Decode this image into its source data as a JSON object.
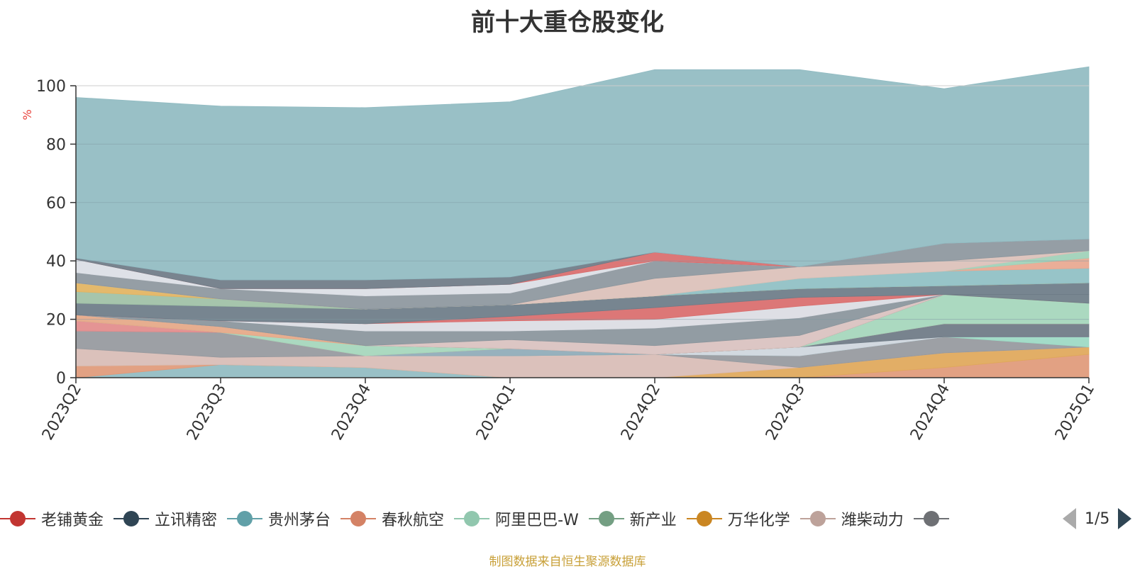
{
  "chart_data": {
    "type": "area",
    "title": "前十大重仓股变化",
    "ylabel": "%",
    "ylim": [
      0,
      100
    ],
    "yticks": [
      0,
      20,
      40,
      60,
      80,
      100
    ],
    "categories": [
      "2023Q2",
      "2023Q3",
      "2023Q4",
      "2024Q1",
      "2024Q2",
      "2024Q3",
      "2024Q4",
      "2025Q1"
    ],
    "grid": true,
    "stacked": true,
    "series": [
      {
        "name": "",
        "color": "#91bbc2",
        "values": [
          0,
          4.5,
          3.5,
          0,
          0,
          0,
          0,
          0
        ]
      },
      {
        "name": "",
        "color": "#e09a7a",
        "values": [
          4,
          0,
          0,
          0,
          0,
          0,
          3.5,
          8
        ]
      },
      {
        "name": "",
        "color": "#e0a85a",
        "values": [
          0,
          0,
          0,
          0,
          0,
          3.5,
          5,
          2.5
        ]
      },
      {
        "name": "",
        "color": "#d8bcb6",
        "values": [
          6,
          2.5,
          4,
          7.5,
          8,
          0,
          0,
          0
        ]
      },
      {
        "name": "",
        "color": "#96999e",
        "values": [
          6,
          8.5,
          0,
          0,
          0,
          4,
          5.5,
          0
        ]
      },
      {
        "name": "",
        "color": "#9cd9c4",
        "values": [
          0,
          0,
          0,
          0,
          0,
          0,
          0,
          3.5
        ]
      },
      {
        "name": "",
        "color": "#8fabb8",
        "values": [
          0,
          0,
          0,
          2.5,
          0,
          0,
          0,
          0
        ]
      },
      {
        "name": "",
        "color": "#cfd6de",
        "values": [
          0,
          0,
          0,
          0,
          0,
          3,
          0,
          0
        ]
      },
      {
        "name": "",
        "color": "#6e7a85",
        "values": [
          0,
          0,
          0,
          0,
          0,
          0,
          4.5,
          4.5
        ]
      },
      {
        "name": "",
        "color": "#e28c8c",
        "values": [
          3.5,
          0,
          0,
          0,
          0,
          0,
          0,
          0
        ]
      },
      {
        "name": "",
        "color": "#a5d6bb",
        "values": [
          0,
          0,
          3.5,
          0,
          0,
          0,
          10,
          7
        ]
      },
      {
        "name": "",
        "color": "#e5a887",
        "values": [
          2,
          2,
          0,
          0,
          0,
          0,
          0,
          0
        ]
      },
      {
        "name": "",
        "color": "#6e7d88",
        "values": [
          0,
          0,
          0,
          0,
          0,
          0,
          0,
          3
        ]
      },
      {
        "name": "",
        "color": "#d9c2bf",
        "values": [
          0,
          0,
          0,
          3,
          3,
          4,
          0,
          0
        ]
      },
      {
        "name": "",
        "color": "#8a959c",
        "values": [
          0,
          2,
          5,
          3,
          6,
          6,
          0,
          0
        ]
      },
      {
        "name": "",
        "color": "#dbdde3",
        "values": [
          0,
          0,
          2.5,
          3.5,
          3,
          4,
          0,
          0
        ]
      },
      {
        "name": "",
        "color": "#d96d6d",
        "values": [
          0,
          0,
          0,
          1.5,
          4,
          3,
          0,
          0
        ]
      },
      {
        "name": "",
        "color": "#6d7c88",
        "values": [
          4,
          5,
          5,
          4,
          4,
          3,
          3,
          4
        ]
      },
      {
        "name": "",
        "color": "#9fc1a6",
        "values": [
          4,
          2.5,
          0,
          0,
          0,
          0,
          0,
          0
        ]
      },
      {
        "name": "",
        "color": "#e2b461",
        "values": [
          3,
          0,
          0,
          0,
          0,
          0,
          0,
          0
        ]
      },
      {
        "name": "",
        "color": "#8fbfc4",
        "values": [
          0,
          0,
          0,
          0,
          0,
          3.5,
          5,
          5
        ]
      },
      {
        "name": "",
        "color": "#e8a890",
        "values": [
          0,
          0,
          0,
          0,
          0,
          0,
          0,
          3.5
        ]
      },
      {
        "name": "",
        "color": "#9fd1b8",
        "values": [
          0,
          0,
          0,
          0,
          0,
          0,
          0,
          2.5
        ]
      },
      {
        "name": "",
        "color": "#dbc1b9",
        "values": [
          0,
          0,
          0,
          0,
          6,
          4,
          3.5,
          0
        ]
      },
      {
        "name": "",
        "color": "#8d979e",
        "values": [
          3.5,
          3.5,
          4.5,
          4,
          6,
          0,
          6,
          4
        ]
      },
      {
        "name": "",
        "color": "#dcdfe5",
        "values": [
          4.5,
          0,
          2.5,
          3,
          0,
          0,
          0,
          0
        ]
      },
      {
        "name": "",
        "color": "#d96d6d",
        "values": [
          0,
          0,
          0,
          0,
          3,
          0,
          0,
          0
        ]
      },
      {
        "name": "",
        "color": "#6f7b87",
        "values": [
          0.5,
          3,
          3,
          2.5,
          0,
          0,
          0,
          0
        ]
      },
      {
        "name": "",
        "color": "#91bbc2",
        "values": [
          55,
          59.5,
          59,
          60,
          62.5,
          67.5,
          53,
          59
        ]
      }
    ],
    "legend": {
      "placement": "bottom",
      "items": [
        {
          "name": "老铺黄金",
          "color": "#c23531"
        },
        {
          "name": "立讯精密",
          "color": "#2f4554"
        },
        {
          "name": "贵州茅台",
          "color": "#61a0a8"
        },
        {
          "name": "春秋航空",
          "color": "#d48265"
        },
        {
          "name": "阿里巴巴-W",
          "color": "#91c7ae"
        },
        {
          "name": "新产业",
          "color": "#749f83"
        },
        {
          "name": "万华化学",
          "color": "#ca8622"
        },
        {
          "name": "潍柴动力",
          "color": "#bda29a"
        },
        {
          "name": "",
          "color": "#6e7074"
        }
      ],
      "page": "1/5"
    }
  },
  "source_note": "制图数据来自恒生聚源数据库",
  "colors": {
    "axis": "#333333",
    "grid": "#7f9aa3",
    "ylabel": "#e8413a",
    "source_note": "#c8a038",
    "pager_active": "#2f4554",
    "pager_inactive": "#aaaaaa"
  }
}
